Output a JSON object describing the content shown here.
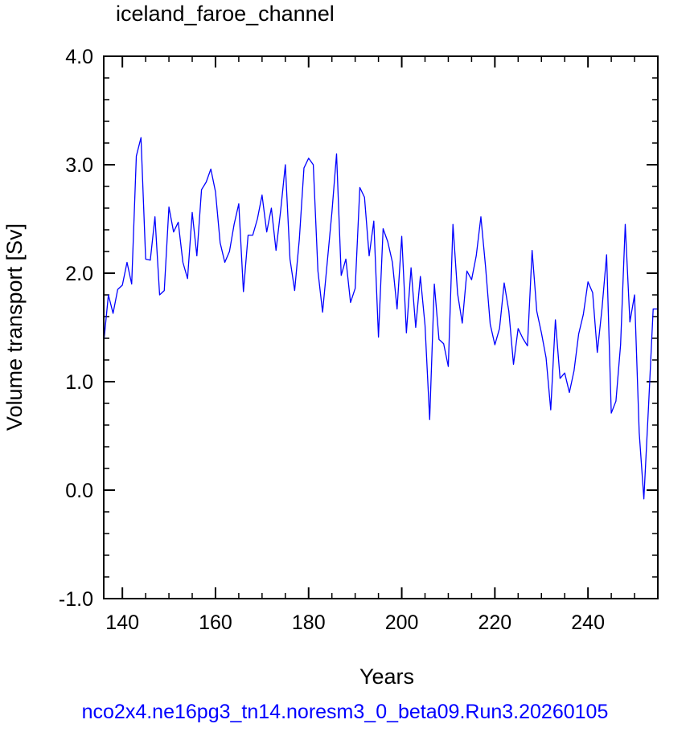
{
  "chart_data": {
    "type": "line",
    "title": "iceland_faroe_channel",
    "xlabel": "Years",
    "ylabel": "Volume transport [Sv]",
    "xlim": [
      136,
      255
    ],
    "ylim": [
      -1.0,
      4.0
    ],
    "xticks": [
      "140",
      "160",
      "180",
      "200",
      "220",
      "240"
    ],
    "yticks": [
      "-1.0",
      "0.0",
      "1.0",
      "2.0",
      "3.0",
      "4.0"
    ],
    "grid": false,
    "series": [
      {
        "name": "",
        "color": "#0000ff",
        "x": [
          136,
          137,
          138,
          139,
          140,
          141,
          142,
          143,
          144,
          145,
          146,
          147,
          148,
          149,
          150,
          151,
          152,
          153,
          154,
          155,
          156,
          157,
          158,
          159,
          160,
          161,
          162,
          163,
          164,
          165,
          166,
          167,
          168,
          169,
          170,
          171,
          172,
          173,
          174,
          175,
          176,
          177,
          178,
          179,
          180,
          181,
          182,
          183,
          184,
          185,
          186,
          187,
          188,
          189,
          190,
          191,
          192,
          193,
          194,
          195,
          196,
          197,
          198,
          199,
          200,
          201,
          202,
          203,
          204,
          205,
          206,
          207,
          208,
          209,
          210,
          211,
          212,
          213,
          214,
          215,
          216,
          217,
          218,
          219,
          220,
          221,
          222,
          223,
          224,
          225,
          226,
          227,
          228,
          229,
          230,
          231,
          232,
          233,
          234,
          235,
          236,
          237,
          238,
          239,
          240,
          241,
          242,
          243,
          244,
          245,
          246,
          247,
          248,
          249,
          250,
          251,
          252,
          253,
          254,
          255
        ],
        "values": [
          1.36,
          1.8,
          1.63,
          1.85,
          1.89,
          2.1,
          1.9,
          3.08,
          3.25,
          2.13,
          2.12,
          2.52,
          1.8,
          1.84,
          2.61,
          2.38,
          2.47,
          2.1,
          1.95,
          2.56,
          2.16,
          2.77,
          2.84,
          2.96,
          2.75,
          2.28,
          2.1,
          2.2,
          2.45,
          2.64,
          1.83,
          2.35,
          2.35,
          2.5,
          2.72,
          2.38,
          2.6,
          2.21,
          2.58,
          3.0,
          2.13,
          1.84,
          2.31,
          2.97,
          3.06,
          3.0,
          2.02,
          1.64,
          2.1,
          2.56,
          3.1,
          1.98,
          2.13,
          1.73,
          1.86,
          2.79,
          2.7,
          2.16,
          2.48,
          1.41,
          2.41,
          2.29,
          2.1,
          1.67,
          2.34,
          1.45,
          2.05,
          1.5,
          1.97,
          1.52,
          0.65,
          1.9,
          1.39,
          1.35,
          1.14,
          2.45,
          1.81,
          1.54,
          2.02,
          1.94,
          2.16,
          2.52,
          2.06,
          1.53,
          1.34,
          1.49,
          1.91,
          1.65,
          1.16,
          1.49,
          1.4,
          1.33,
          2.21,
          1.65,
          1.45,
          1.22,
          0.74,
          1.57,
          1.03,
          1.08,
          0.9,
          1.1,
          1.44,
          1.62,
          1.92,
          1.82,
          1.27,
          1.67,
          2.17,
          0.71,
          0.82,
          1.34,
          2.45,
          1.55,
          1.8,
          0.53,
          -0.08,
          0.77,
          1.67,
          1.67
        ]
      }
    ]
  },
  "footer": "nco2x4.ne16pg3_tn14.noresm3_0_beta09.Run3.20260105"
}
